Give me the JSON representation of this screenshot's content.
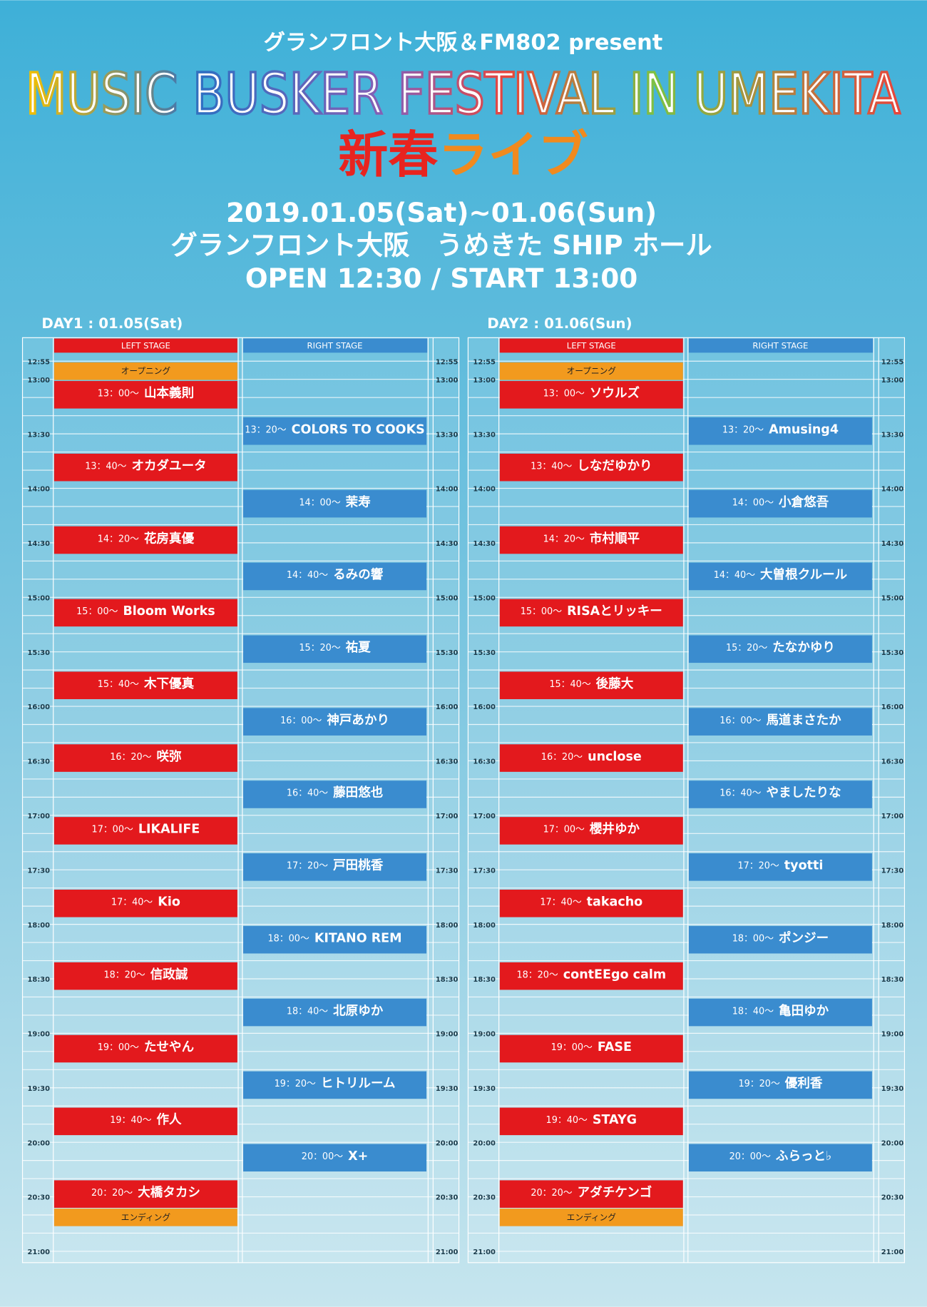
{
  "header": {
    "presenter": "グランフロント大阪＆FM802 present",
    "title": "MUSIC BUSKER FESTIVAL IN UMEKITA",
    "subtitle": "新春ライブ",
    "dates": "2019.01.05(Sat)~01.06(Sun)",
    "venue": "グランフロント大阪　うめきた SHIP ホール",
    "hours": "OPEN 12:30 / START 13:00"
  },
  "times": [
    "12:55",
    "13:00",
    "13:30",
    "14:00",
    "14:30",
    "15:00",
    "15:30",
    "16:00",
    "16:30",
    "17:00",
    "17:30",
    "18:00",
    "18:30",
    "19:00",
    "19:30",
    "20:00",
    "20:30",
    "21:00"
  ],
  "days": [
    {
      "label": "DAY1 : 01.05(Sat)",
      "left_stage": "LEFT STAGE",
      "right_stage": "RIGHT STAGE",
      "opening": "オープニング",
      "ending": "エンディング",
      "left": [
        {
          "time": "13：00～",
          "name": "山本義則"
        },
        {
          "time": "13：40～",
          "name": "オカダユータ"
        },
        {
          "time": "14：20～",
          "name": "花房真優"
        },
        {
          "time": "15：00～",
          "name": "Bloom Works"
        },
        {
          "time": "15：40～",
          "name": "木下優真"
        },
        {
          "time": "16：20～",
          "name": "咲弥"
        },
        {
          "time": "17：00～",
          "name": "LIKALIFE"
        },
        {
          "time": "17：40～",
          "name": "Kio"
        },
        {
          "time": "18：20～",
          "name": "信政誠"
        },
        {
          "time": "19：00～",
          "name": "たせやん"
        },
        {
          "time": "19：40～",
          "name": "作人"
        },
        {
          "time": "20：20～",
          "name": "大橋タカシ"
        }
      ],
      "right": [
        {
          "time": "13：20～",
          "name": "COLORS TO COOKS"
        },
        {
          "time": "14：00～",
          "name": "茉寿"
        },
        {
          "time": "14：40～",
          "name": "るみの響"
        },
        {
          "time": "15：20～",
          "name": "祐夏"
        },
        {
          "time": "16：00～",
          "name": "神戸あかり"
        },
        {
          "time": "16：40～",
          "name": "藤田悠也"
        },
        {
          "time": "17：20～",
          "name": "戸田桃香"
        },
        {
          "time": "18：00～",
          "name": "KITANO REM"
        },
        {
          "time": "18：40～",
          "name": "北原ゆか"
        },
        {
          "time": "19：20～",
          "name": "ヒトリルーム"
        },
        {
          "time": "20：00～",
          "name": "X+"
        }
      ]
    },
    {
      "label": "DAY2 : 01.06(Sun)",
      "left_stage": "LEFT STAGE",
      "right_stage": "RIGHT STAGE",
      "opening": "オープニング",
      "ending": "エンディング",
      "left": [
        {
          "time": "13：00～",
          "name": "ソウルズ"
        },
        {
          "time": "13：40～",
          "name": "しなだゆかり"
        },
        {
          "time": "14：20～",
          "name": "市村順平"
        },
        {
          "time": "15：00～",
          "name": "RISAとリッキー"
        },
        {
          "time": "15：40～",
          "name": "後藤大"
        },
        {
          "time": "16：20～",
          "name": "unclose"
        },
        {
          "time": "17：00～",
          "name": "櫻井ゆか"
        },
        {
          "time": "17：40～",
          "name": "takacho"
        },
        {
          "time": "18：20～",
          "name": "contEEgo calm"
        },
        {
          "time": "19：00～",
          "name": "FASE"
        },
        {
          "time": "19：40～",
          "name": "STAYG"
        },
        {
          "time": "20：20～",
          "name": "アダチケンゴ"
        }
      ],
      "right": [
        {
          "time": "13：20～",
          "name": "Amusing4"
        },
        {
          "time": "14：00～",
          "name": "小倉悠吾"
        },
        {
          "time": "14：40～",
          "name": "大曽根クルール"
        },
        {
          "time": "15：20～",
          "name": "たなかゆり"
        },
        {
          "time": "16：00～",
          "name": "馬道まさたか"
        },
        {
          "time": "16：40～",
          "name": "やましたりな"
        },
        {
          "time": "17：20～",
          "name": "tyotti"
        },
        {
          "time": "18：00～",
          "name": "ポンジー"
        },
        {
          "time": "18：40～",
          "name": "亀田ゆか"
        },
        {
          "time": "19：20～",
          "name": "優利香"
        },
        {
          "time": "20：00～",
          "name": "ふらっと♭"
        }
      ]
    }
  ]
}
